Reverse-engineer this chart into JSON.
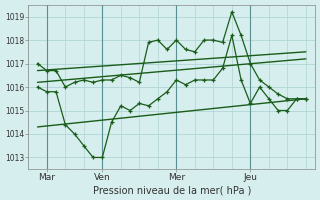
{
  "xlabel": "Pression niveau de la mer( hPa )",
  "ylim": [
    1012.5,
    1019.5
  ],
  "yticks": [
    1013,
    1014,
    1015,
    1016,
    1017,
    1018,
    1019
  ],
  "day_labels": [
    "Mar",
    "Ven",
    "Mer",
    "Jeu"
  ],
  "day_positions": [
    1,
    4,
    8,
    12
  ],
  "vline_positions": [
    1,
    4,
    8,
    12
  ],
  "xlim": [
    0.0,
    15.5
  ],
  "background_color": "#d6eeed",
  "grid_color": "#b2d4d4",
  "line_color": "#1a5c1a",
  "series1_x": [
    0.5,
    1.0,
    1.5,
    2.0,
    2.5,
    3.0,
    3.5,
    4.0,
    4.5,
    5.0,
    5.5,
    6.0,
    6.5,
    7.0,
    7.5,
    8.0,
    8.5,
    9.0,
    9.5,
    10.0,
    10.5,
    11.0,
    11.5,
    12.0,
    12.5,
    13.0,
    13.5,
    14.0,
    14.5,
    15.0
  ],
  "series1_y": [
    1017.0,
    1016.7,
    1016.7,
    1016.0,
    1016.2,
    1016.3,
    1016.2,
    1016.3,
    1016.3,
    1016.5,
    1016.4,
    1016.2,
    1017.9,
    1018.0,
    1017.6,
    1018.0,
    1017.6,
    1017.5,
    1018.0,
    1018.0,
    1017.9,
    1019.2,
    1018.2,
    1017.0,
    1016.3,
    1016.0,
    1015.7,
    1015.5,
    1015.5,
    1015.5
  ],
  "series2_x": [
    0.5,
    1.0,
    1.5,
    2.0,
    2.5,
    3.0,
    3.5,
    4.0,
    4.5,
    5.0,
    5.5,
    6.0,
    6.5,
    7.0,
    7.5,
    8.0,
    8.5,
    9.0,
    9.5,
    10.0,
    10.5,
    11.0,
    11.5,
    12.0,
    12.5,
    13.0,
    13.5,
    14.0,
    14.5,
    15.0
  ],
  "series2_y": [
    1016.0,
    1015.8,
    1015.8,
    1014.4,
    1014.0,
    1013.5,
    1013.0,
    1013.0,
    1014.5,
    1015.2,
    1015.0,
    1015.3,
    1015.2,
    1015.5,
    1015.8,
    1016.3,
    1016.1,
    1016.3,
    1016.3,
    1016.3,
    1016.8,
    1018.2,
    1016.3,
    1015.3,
    1016.0,
    1015.5,
    1015.0,
    1015.0,
    1015.5,
    1015.5
  ],
  "trend1_x": [
    0.5,
    15.0
  ],
  "trend1_y": [
    1016.7,
    1017.5
  ],
  "trend2_x": [
    0.5,
    15.0
  ],
  "trend2_y": [
    1016.2,
    1017.2
  ],
  "trend3_x": [
    0.5,
    15.0
  ],
  "trend3_y": [
    1014.3,
    1015.5
  ]
}
